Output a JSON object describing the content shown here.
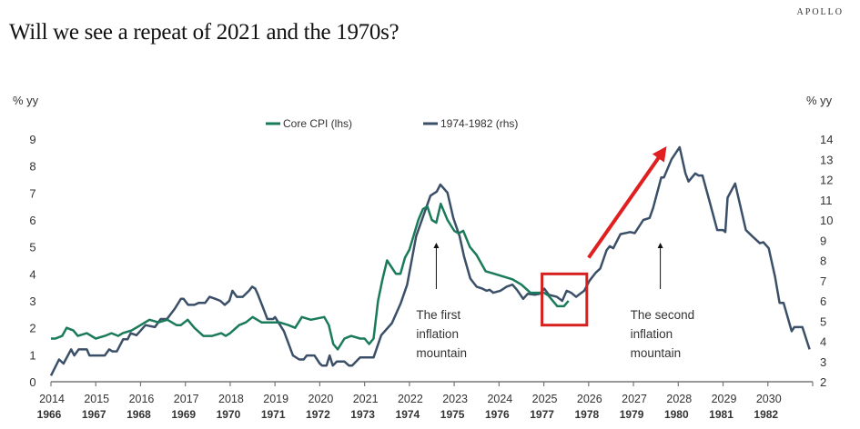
{
  "brand": "APOLLO",
  "title": "Will we see a repeat of 2021 and the 1970s?",
  "chart_data": {
    "type": "line",
    "title": "Will we see a repeat of 2021 and the 1970s?",
    "ylabel_left": "% yy",
    "ylabel_right": "% yy",
    "ylim_left": [
      0,
      9
    ],
    "ylim_right": [
      2,
      14
    ],
    "yticks_left": [
      "0",
      "1",
      "2",
      "3",
      "4",
      "5",
      "6",
      "7",
      "8",
      "9"
    ],
    "yticks_right": [
      "2",
      "3",
      "4",
      "5",
      "6",
      "7",
      "8",
      "9",
      "10",
      "11",
      "12",
      "13",
      "14"
    ],
    "xlim": [
      2014,
      2031
    ],
    "xticks_top": [
      "2014",
      "2015",
      "2016",
      "2017",
      "2018",
      "2019",
      "2020",
      "2021",
      "2022",
      "2023",
      "2024",
      "2025",
      "2026",
      "2027",
      "2028",
      "2029",
      "2030"
    ],
    "xticks_bottom": [
      "1966",
      "1967",
      "1968",
      "1969",
      "1970",
      "1971",
      "1972",
      "1973",
      "1974",
      "1975",
      "1976",
      "1977",
      "1978",
      "1979",
      "1980",
      "1981",
      "1982"
    ],
    "grid": false,
    "legend_position": "top-center",
    "series": [
      {
        "name": "Core CPI (lhs)",
        "axis": "left",
        "color": "#1a7a5a",
        "x": [
          2014.0,
          2014.1,
          2014.25,
          2014.35,
          2014.5,
          2014.6,
          2014.8,
          2015.0,
          2015.2,
          2015.35,
          2015.5,
          2015.6,
          2015.8,
          2016.0,
          2016.1,
          2016.2,
          2016.4,
          2016.6,
          2016.8,
          2016.9,
          2017.05,
          2017.2,
          2017.4,
          2017.6,
          2017.8,
          2017.9,
          2018.0,
          2018.2,
          2018.35,
          2018.5,
          2018.7,
          2018.9,
          2019.1,
          2019.3,
          2019.45,
          2019.6,
          2019.8,
          2020.1,
          2020.2,
          2020.3,
          2020.4,
          2020.55,
          2020.7,
          2020.9,
          2021.0,
          2021.1,
          2021.2,
          2021.3,
          2021.4,
          2021.5,
          2021.7,
          2021.8,
          2021.9,
          2022.0,
          2022.2,
          2022.3,
          2022.4,
          2022.5,
          2022.6,
          2022.7,
          2022.85,
          2023.0,
          2023.1,
          2023.2,
          2023.35,
          2023.5,
          2023.7,
          2023.9,
          2024.1,
          2024.3,
          2024.5,
          2024.7,
          2024.9,
          2025.0,
          2025.1,
          2025.3,
          2025.45,
          2025.55
        ],
        "y": [
          1.6,
          1.6,
          1.7,
          2.0,
          1.9,
          1.7,
          1.8,
          1.6,
          1.7,
          1.8,
          1.7,
          1.8,
          1.9,
          2.1,
          2.2,
          2.3,
          2.2,
          2.3,
          2.1,
          2.1,
          2.3,
          2.0,
          1.7,
          1.7,
          1.8,
          1.7,
          1.8,
          2.1,
          2.2,
          2.4,
          2.2,
          2.2,
          2.2,
          2.1,
          2.0,
          2.4,
          2.3,
          2.4,
          2.1,
          1.4,
          1.2,
          1.6,
          1.7,
          1.6,
          1.6,
          1.4,
          1.6,
          3.0,
          3.8,
          4.5,
          4.0,
          4.0,
          4.6,
          4.9,
          6.0,
          6.4,
          6.5,
          6.0,
          5.9,
          6.6,
          6.0,
          5.6,
          5.5,
          5.6,
          5.0,
          4.7,
          4.1,
          4.0,
          3.9,
          3.8,
          3.6,
          3.3,
          3.3,
          3.3,
          3.2,
          2.8,
          2.8,
          3.0
        ]
      },
      {
        "name": "1974-1982 (rhs)",
        "axis": "right",
        "color": "#3b5068",
        "x": [
          2014.0,
          2014.18,
          2014.28,
          2014.45,
          2014.52,
          2014.62,
          2014.8,
          2014.86,
          2015.2,
          2015.3,
          2015.37,
          2015.47,
          2015.61,
          2015.71,
          2015.78,
          2015.91,
          2016.11,
          2016.32,
          2016.45,
          2016.59,
          2016.76,
          2016.9,
          2016.96,
          2017.06,
          2017.2,
          2017.3,
          2017.44,
          2017.54,
          2017.67,
          2017.78,
          2017.88,
          2017.98,
          2018.05,
          2018.15,
          2018.28,
          2018.42,
          2018.49,
          2018.56,
          2018.62,
          2018.76,
          2018.83,
          2018.96,
          2019.0,
          2019.2,
          2019.4,
          2019.54,
          2019.64,
          2019.71,
          2019.88,
          2020.0,
          2020.05,
          2020.15,
          2020.22,
          2020.29,
          2020.38,
          2020.55,
          2020.65,
          2020.72,
          2020.9,
          2021.2,
          2021.37,
          2021.61,
          2021.81,
          2021.95,
          2022.15,
          2022.47,
          2022.61,
          2022.69,
          2022.85,
          2022.98,
          2023.12,
          2023.22,
          2023.36,
          2023.5,
          2023.63,
          2023.72,
          2023.79,
          2023.87,
          2024.03,
          2024.17,
          2024.3,
          2024.4,
          2024.54,
          2024.64,
          2024.8,
          2024.91,
          2025.01,
          2025.11,
          2025.29,
          2025.41,
          2025.51,
          2025.61,
          2025.72,
          2025.9,
          2026.02,
          2026.16,
          2026.26,
          2026.4,
          2026.47,
          2026.55,
          2026.71,
          2026.93,
          2027.03,
          2027.22,
          2027.36,
          2027.44,
          2027.62,
          2027.68,
          2027.85,
          2028.03,
          2028.16,
          2028.23,
          2028.38,
          2028.45,
          2028.54,
          2028.7,
          2028.87,
          2029.0,
          2029.05,
          2029.1,
          2029.27,
          2029.51,
          2029.65,
          2029.82,
          2029.9,
          2030.02,
          2030.16,
          2030.26,
          2030.35,
          2030.53,
          2030.59,
          2030.77,
          2030.93
        ],
        "y": [
          2.3,
          3.1,
          2.9,
          3.6,
          3.3,
          3.6,
          3.6,
          3.3,
          3.3,
          3.6,
          3.5,
          3.5,
          4.1,
          4.1,
          4.4,
          4.3,
          4.8,
          4.7,
          5.1,
          5.1,
          5.6,
          6.1,
          6.1,
          5.8,
          5.8,
          5.9,
          5.9,
          6.2,
          6.1,
          6.0,
          5.8,
          6.0,
          6.5,
          6.2,
          6.2,
          6.5,
          6.7,
          6.6,
          6.3,
          5.5,
          5.1,
          5.1,
          5.2,
          4.5,
          3.3,
          3.1,
          3.1,
          3.3,
          3.3,
          2.9,
          2.8,
          2.8,
          3.3,
          2.8,
          3.0,
          3.0,
          2.8,
          2.8,
          3.2,
          3.2,
          4.3,
          4.9,
          5.9,
          6.8,
          9.2,
          11.2,
          11.4,
          11.75,
          11.35,
          10.1,
          9.2,
          8.2,
          7.1,
          6.7,
          6.6,
          6.5,
          6.55,
          6.4,
          6.5,
          6.7,
          6.8,
          6.55,
          6.1,
          6.35,
          6.3,
          6.35,
          6.6,
          6.3,
          6.2,
          6.0,
          6.5,
          6.4,
          6.2,
          6.5,
          7.0,
          7.4,
          7.6,
          8.5,
          8.7,
          8.6,
          9.3,
          9.4,
          9.35,
          10.0,
          10.1,
          10.6,
          12.1,
          12.1,
          13.0,
          13.6,
          12.3,
          11.9,
          12.3,
          12.2,
          12.2,
          10.9,
          9.5,
          9.5,
          9.4,
          11.1,
          11.8,
          9.5,
          9.2,
          8.85,
          8.9,
          8.6,
          7.2,
          5.9,
          5.9,
          4.5,
          4.7,
          4.7,
          3.6
        ]
      }
    ],
    "annotations": [
      {
        "text": [
          "The first",
          "inflation",
          "mountain"
        ],
        "arrow_x": 2022.6
      },
      {
        "text": [
          "The second",
          "inflation",
          "mountain"
        ],
        "arrow_x": 2027.6
      }
    ],
    "highlight_box": {
      "x": [
        2025.0,
        2026.0
      ],
      "y_left": [
        2.1,
        4.0
      ],
      "color": "#d62020"
    },
    "trend_arrow": {
      "from": [
        2026.0,
        4.6
      ],
      "to": [
        2027.6,
        8.4
      ],
      "axis": "left",
      "color": "#e02020"
    }
  }
}
